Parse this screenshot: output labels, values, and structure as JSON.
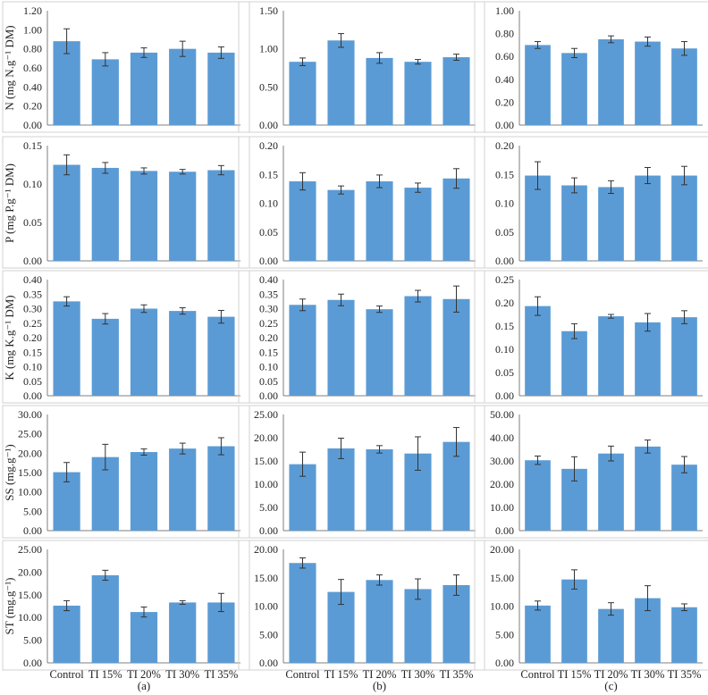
{
  "colors": {
    "bar": "#5b9bd5",
    "axis": "#7f7f7f",
    "frame": "#d0d0d0",
    "error": "#333333"
  },
  "categories": [
    "Control",
    "TI 15%",
    "TI 20%",
    "TI 30%",
    "TI 35%"
  ],
  "column_labels": [
    "(a)",
    "(b)",
    "(c)"
  ],
  "chart_data": [
    {
      "type": "bar",
      "id": "N-a",
      "ylabel": "N (mg N.g⁻¹ DM)",
      "ylim": [
        0,
        1.2
      ],
      "ticks": [
        "0.00",
        "0.20",
        "0.40",
        "0.60",
        "0.80",
        "1.00",
        "1.20"
      ],
      "values": [
        0.88,
        0.69,
        0.76,
        0.8,
        0.76
      ],
      "errors": [
        0.13,
        0.07,
        0.05,
        0.08,
        0.06
      ]
    },
    {
      "type": "bar",
      "id": "N-b",
      "ylim": [
        0,
        1.5
      ],
      "ticks": [
        "0.00",
        "0.50",
        "1.00",
        "1.50"
      ],
      "values": [
        0.83,
        1.11,
        0.88,
        0.83,
        0.89
      ],
      "errors": [
        0.05,
        0.09,
        0.07,
        0.03,
        0.04
      ]
    },
    {
      "type": "bar",
      "id": "N-c",
      "ylim": [
        0,
        1.0
      ],
      "ticks": [
        "0.00",
        "0.20",
        "0.40",
        "0.60",
        "0.80",
        "1.00"
      ],
      "values": [
        0.7,
        0.63,
        0.75,
        0.73,
        0.67
      ],
      "errors": [
        0.03,
        0.04,
        0.03,
        0.04,
        0.06
      ]
    },
    {
      "type": "bar",
      "id": "P-a",
      "ylabel": "P (mg P.g⁻¹ DM)",
      "ylim": [
        0,
        0.15
      ],
      "ticks": [
        "0.00",
        "0.05",
        "0.10",
        "0.15"
      ],
      "values": [
        0.125,
        0.121,
        0.117,
        0.116,
        0.118
      ],
      "errors": [
        0.013,
        0.007,
        0.004,
        0.003,
        0.006
      ]
    },
    {
      "type": "bar",
      "id": "P-b",
      "ylim": [
        0,
        0.2
      ],
      "ticks": [
        "0.00",
        "0.05",
        "0.10",
        "0.15",
        "0.20"
      ],
      "values": [
        0.138,
        0.123,
        0.138,
        0.127,
        0.143
      ],
      "errors": [
        0.015,
        0.007,
        0.011,
        0.008,
        0.017
      ]
    },
    {
      "type": "bar",
      "id": "P-c",
      "ylim": [
        0,
        0.2
      ],
      "ticks": [
        "0.00",
        "0.05",
        "0.10",
        "0.15",
        "0.20"
      ],
      "values": [
        0.148,
        0.131,
        0.128,
        0.148,
        0.148
      ],
      "errors": [
        0.024,
        0.013,
        0.011,
        0.014,
        0.016
      ]
    },
    {
      "type": "bar",
      "id": "K-a",
      "ylabel": "K (mg K.g⁻¹ DM)",
      "ylim": [
        0,
        0.4
      ],
      "ticks": [
        "0.00",
        "0.05",
        "0.10",
        "0.15",
        "0.20",
        "0.25",
        "0.30",
        "0.35",
        "0.40"
      ],
      "values": [
        0.325,
        0.265,
        0.3,
        0.292,
        0.272
      ],
      "errors": [
        0.016,
        0.018,
        0.013,
        0.011,
        0.022
      ]
    },
    {
      "type": "bar",
      "id": "K-b",
      "ylim": [
        0,
        0.4
      ],
      "ticks": [
        "0.00",
        "0.05",
        "0.10",
        "0.15",
        "0.20",
        "0.25",
        "0.30",
        "0.35",
        "0.40"
      ],
      "values": [
        0.313,
        0.33,
        0.298,
        0.343,
        0.333
      ],
      "errors": [
        0.02,
        0.02,
        0.011,
        0.02,
        0.045
      ]
    },
    {
      "type": "bar",
      "id": "K-c",
      "ylim": [
        0,
        0.25
      ],
      "ticks": [
        "0.00",
        "0.05",
        "0.10",
        "0.15",
        "0.20",
        "0.25"
      ],
      "values": [
        0.193,
        0.139,
        0.171,
        0.158,
        0.169
      ],
      "errors": [
        0.02,
        0.016,
        0.004,
        0.019,
        0.014
      ]
    },
    {
      "type": "bar",
      "id": "SS-a",
      "ylabel": "SS (mg.g⁻¹)",
      "ylim": [
        0,
        30
      ],
      "ticks": [
        "0.00",
        "5.00",
        "10.00",
        "15.00",
        "20.00",
        "25.00",
        "30.00"
      ],
      "values": [
        15.1,
        19.0,
        20.3,
        21.2,
        21.8
      ],
      "errors": [
        2.5,
        3.3,
        0.8,
        1.4,
        2.2
      ]
    },
    {
      "type": "bar",
      "id": "SS-b",
      "ylim": [
        0,
        25
      ],
      "ticks": [
        "0.00",
        "5.00",
        "10.00",
        "15.00",
        "20.00",
        "25.00"
      ],
      "values": [
        14.3,
        17.7,
        17.5,
        16.6,
        19.1
      ],
      "errors": [
        2.6,
        2.2,
        0.8,
        3.6,
        3.1
      ]
    },
    {
      "type": "bar",
      "id": "SS-c",
      "ylim": [
        0,
        50
      ],
      "ticks": [
        "0.00",
        "10.00",
        "20.00",
        "30.00",
        "40.00",
        "50.00"
      ],
      "values": [
        30.3,
        26.6,
        33.2,
        36.2,
        28.4
      ],
      "errors": [
        1.8,
        5.2,
        3.2,
        2.8,
        3.5
      ]
    },
    {
      "type": "bar",
      "id": "ST-a",
      "ylabel": "ST (mg.g⁻¹)",
      "ylim": [
        0,
        25
      ],
      "ticks": [
        "0.00",
        "5.00",
        "10.00",
        "15.00",
        "20.00",
        "25.00"
      ],
      "values": [
        12.6,
        19.3,
        11.2,
        13.3,
        13.3
      ],
      "errors": [
        1.1,
        1.1,
        1.1,
        0.4,
        2.0
      ]
    },
    {
      "type": "bar",
      "id": "ST-b",
      "ylim": [
        0,
        20
      ],
      "ticks": [
        "0.00",
        "5.00",
        "10.00",
        "15.00",
        "20.00"
      ],
      "values": [
        17.6,
        12.5,
        14.6,
        13.0,
        13.7
      ],
      "errors": [
        0.9,
        2.2,
        0.9,
        1.8,
        1.8
      ]
    },
    {
      "type": "bar",
      "id": "ST-c",
      "ylim": [
        0,
        20
      ],
      "ticks": [
        "0.00",
        "5.00",
        "10.00",
        "15.00",
        "20.00"
      ],
      "values": [
        10.1,
        14.7,
        9.5,
        11.4,
        9.8
      ],
      "errors": [
        0.8,
        1.7,
        1.1,
        2.2,
        0.6
      ]
    }
  ]
}
